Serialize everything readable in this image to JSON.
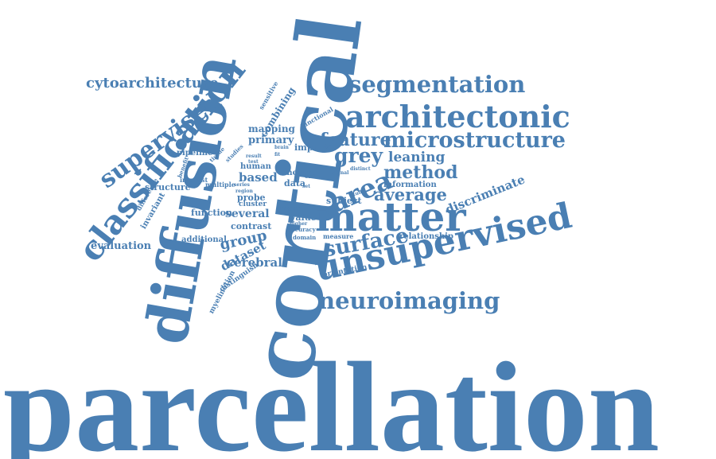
{
  "color": "#4a7fb3",
  "words": [
    "parcellation",
    "cortical",
    "diffusion",
    "unsupervised",
    "matter",
    "classification",
    "architectonic",
    "segmentation",
    "neuroimaging",
    "microstructure",
    "supervised",
    "area",
    "surface",
    "feature",
    "grey",
    "method",
    "average",
    "cytoarchitecture",
    "leaning",
    "discriminate",
    "group",
    "evaluation",
    "dataset",
    "cerebral",
    "several",
    "based",
    "primary",
    "mapping",
    "combining",
    "function",
    "structure",
    "contrast",
    "human",
    "pipeline",
    "invariant",
    "additional",
    "data",
    "relationship",
    "information",
    "subject",
    "improve",
    "value",
    "probe",
    "myelination",
    "distinguish",
    "orientation",
    "sensitive",
    "functional",
    "motor",
    "more",
    "measure",
    "cluster",
    "multiple",
    "interest",
    "difference",
    "benefit",
    "studies",
    "tissue",
    "brain",
    "result",
    "test",
    "region",
    "series",
    "higher",
    "accuracy",
    "domain",
    "order",
    "signal",
    "distinct",
    "study",
    "set",
    "fit"
  ]
}
